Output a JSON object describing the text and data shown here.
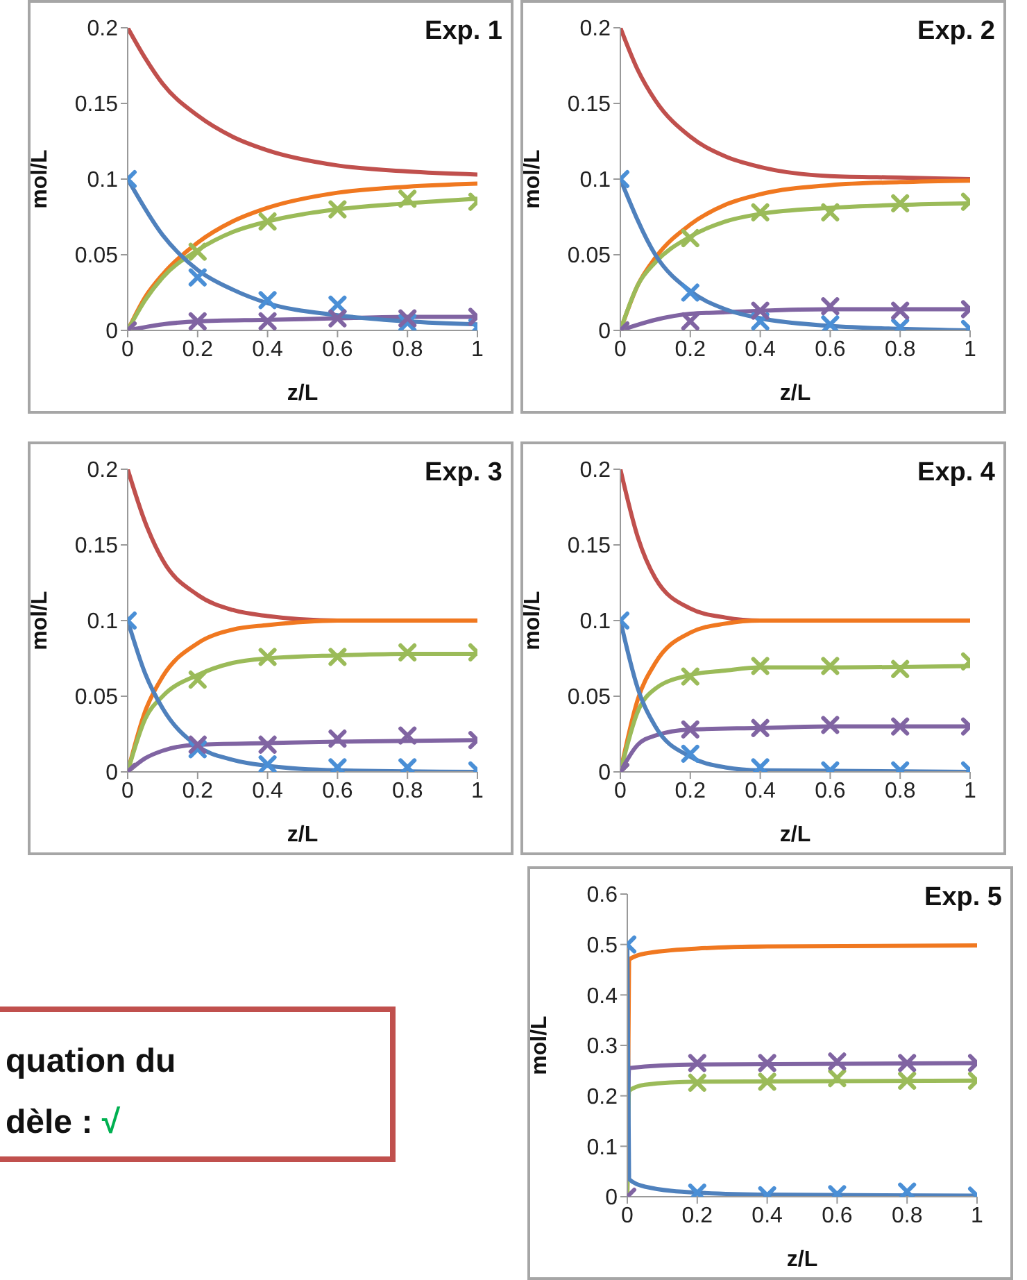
{
  "chart_data": [
    {
      "type": "line",
      "title": "Exp. 1",
      "xlabel": "z/L",
      "ylabel": "mol/L",
      "xlim": [
        0,
        1
      ],
      "xticks": [
        0,
        0.2,
        0.4,
        0.6,
        0.8,
        1
      ],
      "ylim": [
        0,
        0.2
      ],
      "yticks": [
        0,
        0.05,
        0.1,
        0.15,
        0.2
      ],
      "series": [
        {
          "type": "line",
          "color": "#c0504d",
          "x": [
            0,
            0.05,
            0.1,
            0.2,
            0.3,
            0.4,
            0.6,
            0.8,
            1
          ],
          "values": [
            0.2,
            0.18,
            0.163,
            0.142,
            0.128,
            0.119,
            0.109,
            0.105,
            0.103
          ]
        },
        {
          "type": "line",
          "color": "#f07820",
          "x": [
            0,
            0.05,
            0.1,
            0.2,
            0.3,
            0.4,
            0.6,
            0.8,
            1
          ],
          "values": [
            0,
            0.022,
            0.037,
            0.058,
            0.072,
            0.081,
            0.091,
            0.095,
            0.097
          ]
        },
        {
          "type": "line",
          "color": "#9bbb59",
          "x": [
            0,
            0.05,
            0.1,
            0.2,
            0.3,
            0.4,
            0.6,
            0.8,
            1
          ],
          "values": [
            0,
            0.02,
            0.035,
            0.053,
            0.065,
            0.072,
            0.08,
            0.084,
            0.087
          ]
        },
        {
          "type": "line",
          "color": "#8064a2",
          "x": [
            0,
            0.1,
            0.2,
            0.4,
            0.6,
            0.8,
            1
          ],
          "values": [
            0,
            0.004,
            0.006,
            0.007,
            0.008,
            0.009,
            0.009
          ]
        },
        {
          "type": "line",
          "color": "#4f81bd",
          "x": [
            0,
            0.1,
            0.2,
            0.3,
            0.4,
            0.6,
            0.8,
            1
          ],
          "values": [
            0.1,
            0.063,
            0.04,
            0.027,
            0.018,
            0.01,
            0.006,
            0.004
          ]
        },
        {
          "type": "scatter",
          "marker": "cross",
          "color": "#4a8fd6",
          "x": [
            0,
            0.2,
            0.4,
            0.6,
            0.8,
            1
          ],
          "values": [
            0.1,
            0.035,
            0.02,
            0.017,
            0.005,
            0.002
          ]
        },
        {
          "type": "scatter",
          "marker": "cross",
          "color": "#9bbb59",
          "x": [
            0,
            0.2,
            0.4,
            0.6,
            0.8,
            1
          ],
          "values": [
            0,
            0.052,
            0.072,
            0.08,
            0.087,
            0.085
          ]
        },
        {
          "type": "scatter",
          "marker": "cross",
          "color": "#8064a2",
          "x": [
            0,
            0.2,
            0.4,
            0.6,
            0.8,
            1
          ],
          "values": [
            0,
            0.006,
            0.006,
            0.008,
            0.008,
            0.009
          ]
        }
      ]
    },
    {
      "type": "line",
      "title": "Exp. 2",
      "xlabel": "z/L",
      "ylabel": "mol/L",
      "xlim": [
        0,
        1
      ],
      "xticks": [
        0,
        0.2,
        0.4,
        0.6,
        0.8,
        1
      ],
      "ylim": [
        0,
        0.2
      ],
      "yticks": [
        0,
        0.05,
        0.1,
        0.15,
        0.2
      ],
      "series": [
        {
          "type": "line",
          "color": "#c0504d",
          "x": [
            0,
            0.05,
            0.1,
            0.2,
            0.3,
            0.4,
            0.6,
            0.8,
            1
          ],
          "values": [
            0.2,
            0.172,
            0.152,
            0.128,
            0.115,
            0.108,
            0.102,
            0.101,
            0.1
          ]
        },
        {
          "type": "line",
          "color": "#f07820",
          "x": [
            0,
            0.05,
            0.1,
            0.2,
            0.3,
            0.4,
            0.6,
            0.8,
            1
          ],
          "values": [
            0,
            0.03,
            0.048,
            0.07,
            0.083,
            0.09,
            0.096,
            0.098,
            0.099
          ]
        },
        {
          "type": "line",
          "color": "#9bbb59",
          "x": [
            0,
            0.05,
            0.1,
            0.2,
            0.3,
            0.4,
            0.6,
            0.8,
            1
          ],
          "values": [
            0,
            0.03,
            0.045,
            0.062,
            0.072,
            0.077,
            0.081,
            0.083,
            0.084
          ]
        },
        {
          "type": "line",
          "color": "#8064a2",
          "x": [
            0,
            0.1,
            0.2,
            0.3,
            0.4,
            0.6,
            1
          ],
          "values": [
            0,
            0.007,
            0.011,
            0.012,
            0.013,
            0.014,
            0.014
          ]
        },
        {
          "type": "line",
          "color": "#4f81bd",
          "x": [
            0,
            0.1,
            0.2,
            0.3,
            0.4,
            0.6,
            0.8,
            1
          ],
          "values": [
            0.1,
            0.05,
            0.026,
            0.014,
            0.008,
            0.003,
            0.001,
            0
          ]
        },
        {
          "type": "scatter",
          "marker": "cross",
          "color": "#4a8fd6",
          "x": [
            0,
            0.2,
            0.4,
            0.6,
            0.8,
            1
          ],
          "values": [
            0.1,
            0.025,
            0.006,
            0.004,
            0.002,
            0.001
          ]
        },
        {
          "type": "scatter",
          "marker": "cross",
          "color": "#9bbb59",
          "x": [
            0,
            0.2,
            0.4,
            0.6,
            0.8,
            1
          ],
          "values": [
            0,
            0.061,
            0.078,
            0.078,
            0.084,
            0.085
          ]
        },
        {
          "type": "scatter",
          "marker": "cross",
          "color": "#8064a2",
          "x": [
            0,
            0.2,
            0.4,
            0.6,
            0.8,
            1
          ],
          "values": [
            0,
            0.006,
            0.013,
            0.016,
            0.013,
            0.014
          ]
        }
      ]
    },
    {
      "type": "line",
      "title": "Exp. 3",
      "xlabel": "z/L",
      "ylabel": "mol/L",
      "xlim": [
        0,
        1
      ],
      "xticks": [
        0,
        0.2,
        0.4,
        0.6,
        0.8,
        1
      ],
      "ylim": [
        0,
        0.2
      ],
      "yticks": [
        0,
        0.05,
        0.1,
        0.15,
        0.2
      ],
      "series": [
        {
          "type": "line",
          "color": "#c0504d",
          "x": [
            0,
            0.05,
            0.1,
            0.2,
            0.3,
            0.4,
            0.6,
            1
          ],
          "values": [
            0.2,
            0.165,
            0.14,
            0.117,
            0.107,
            0.103,
            0.1,
            0.1
          ]
        },
        {
          "type": "line",
          "color": "#f07820",
          "x": [
            0,
            0.05,
            0.1,
            0.2,
            0.3,
            0.4,
            0.6,
            1
          ],
          "values": [
            0,
            0.04,
            0.063,
            0.085,
            0.094,
            0.097,
            0.1,
            0.1
          ]
        },
        {
          "type": "line",
          "color": "#9bbb59",
          "x": [
            0,
            0.05,
            0.1,
            0.2,
            0.3,
            0.4,
            0.6,
            0.8,
            1
          ],
          "values": [
            0,
            0.035,
            0.05,
            0.064,
            0.072,
            0.075,
            0.077,
            0.078,
            0.078
          ]
        },
        {
          "type": "line",
          "color": "#8064a2",
          "x": [
            0,
            0.05,
            0.1,
            0.2,
            0.4,
            0.6,
            1
          ],
          "values": [
            0,
            0.009,
            0.014,
            0.018,
            0.019,
            0.02,
            0.021
          ]
        },
        {
          "type": "line",
          "color": "#4f81bd",
          "x": [
            0,
            0.05,
            0.1,
            0.2,
            0.3,
            0.4,
            0.6,
            1
          ],
          "values": [
            0.1,
            0.065,
            0.042,
            0.017,
            0.008,
            0.004,
            0.001,
            0
          ]
        },
        {
          "type": "scatter",
          "marker": "cross",
          "color": "#4a8fd6",
          "x": [
            0,
            0.2,
            0.4,
            0.6,
            0.8,
            1
          ],
          "values": [
            0.1,
            0.015,
            0.005,
            0.003,
            0.003,
            0.001
          ]
        },
        {
          "type": "scatter",
          "marker": "cross",
          "color": "#9bbb59",
          "x": [
            0,
            0.2,
            0.4,
            0.6,
            0.8,
            1
          ],
          "values": [
            0,
            0.061,
            0.076,
            0.076,
            0.079,
            0.079
          ]
        },
        {
          "type": "scatter",
          "marker": "cross",
          "color": "#8064a2",
          "x": [
            0,
            0.2,
            0.4,
            0.6,
            0.8,
            1
          ],
          "values": [
            0,
            0.018,
            0.018,
            0.022,
            0.024,
            0.021
          ]
        }
      ]
    },
    {
      "type": "line",
      "title": "Exp. 4",
      "xlabel": "z/L",
      "ylabel": "mol/L",
      "xlim": [
        0,
        1
      ],
      "xticks": [
        0,
        0.2,
        0.4,
        0.6,
        0.8,
        1
      ],
      "ylim": [
        0,
        0.2
      ],
      "yticks": [
        0,
        0.05,
        0.1,
        0.15,
        0.2
      ],
      "series": [
        {
          "type": "line",
          "color": "#c0504d",
          "x": [
            0,
            0.05,
            0.1,
            0.2,
            0.3,
            0.4,
            1
          ],
          "values": [
            0.2,
            0.155,
            0.128,
            0.108,
            0.102,
            0.1,
            0.1
          ]
        },
        {
          "type": "line",
          "color": "#f07820",
          "x": [
            0,
            0.05,
            0.1,
            0.2,
            0.3,
            0.4,
            1
          ],
          "values": [
            0,
            0.048,
            0.072,
            0.092,
            0.098,
            0.1,
            0.1
          ]
        },
        {
          "type": "line",
          "color": "#9bbb59",
          "x": [
            0,
            0.05,
            0.1,
            0.2,
            0.3,
            0.4,
            0.6,
            1
          ],
          "values": [
            0,
            0.04,
            0.055,
            0.064,
            0.067,
            0.069,
            0.069,
            0.07
          ]
        },
        {
          "type": "line",
          "color": "#8064a2",
          "x": [
            0,
            0.05,
            0.1,
            0.2,
            0.4,
            0.6,
            1
          ],
          "values": [
            0,
            0.018,
            0.024,
            0.028,
            0.029,
            0.03,
            0.03
          ]
        },
        {
          "type": "line",
          "color": "#4f81bd",
          "x": [
            0,
            0.05,
            0.1,
            0.2,
            0.3,
            0.4,
            1
          ],
          "values": [
            0.1,
            0.055,
            0.03,
            0.01,
            0.003,
            0.001,
            0
          ]
        },
        {
          "type": "scatter",
          "marker": "cross",
          "color": "#4a8fd6",
          "x": [
            0,
            0.2,
            0.4,
            0.6,
            0.8,
            1
          ],
          "values": [
            0.1,
            0.012,
            0.003,
            0.001,
            0.001,
            0.001
          ]
        },
        {
          "type": "scatter",
          "marker": "cross",
          "color": "#9bbb59",
          "x": [
            0,
            0.2,
            0.4,
            0.6,
            0.8,
            1
          ],
          "values": [
            0,
            0.063,
            0.07,
            0.07,
            0.068,
            0.073
          ]
        },
        {
          "type": "scatter",
          "marker": "cross",
          "color": "#8064a2",
          "x": [
            0,
            0.2,
            0.4,
            0.6,
            0.8,
            1
          ],
          "values": [
            0,
            0.028,
            0.029,
            0.031,
            0.03,
            0.03
          ]
        }
      ]
    },
    {
      "type": "line",
      "title": "Exp. 5",
      "xlabel": "z/L",
      "ylabel": "mol/L",
      "xlim": [
        0,
        1
      ],
      "xticks": [
        0,
        0.2,
        0.4,
        0.6,
        0.8,
        1
      ],
      "ylim": [
        0,
        0.6
      ],
      "yticks": [
        0,
        0.1,
        0.2,
        0.3,
        0.4,
        0.5,
        0.6
      ],
      "series": [
        {
          "type": "line",
          "color": "#f07820",
          "x": [
            0,
            0.005,
            0.05,
            0.2,
            0.4,
            1
          ],
          "values": [
            0,
            0.47,
            0.482,
            0.492,
            0.496,
            0.498
          ]
        },
        {
          "type": "line",
          "color": "#8064a2",
          "x": [
            0,
            0.005,
            0.2,
            1
          ],
          "values": [
            0,
            0.255,
            0.262,
            0.265
          ]
        },
        {
          "type": "line",
          "color": "#9bbb59",
          "x": [
            0,
            0.005,
            0.05,
            0.2,
            1
          ],
          "values": [
            0,
            0.21,
            0.222,
            0.228,
            0.23
          ]
        },
        {
          "type": "line",
          "color": "#4f81bd",
          "x": [
            0,
            0.005,
            0.05,
            0.2,
            0.4,
            1
          ],
          "values": [
            0.5,
            0.035,
            0.02,
            0.008,
            0.004,
            0.002
          ]
        },
        {
          "type": "scatter",
          "marker": "cross",
          "color": "#4a8fd6",
          "x": [
            0,
            0.2,
            0.4,
            0.6,
            0.8,
            1
          ],
          "values": [
            0.5,
            0.008,
            0.003,
            0.005,
            0.01,
            0.002
          ]
        },
        {
          "type": "scatter",
          "marker": "cross",
          "color": "#9bbb59",
          "x": [
            0.2,
            0.4,
            0.6,
            0.8,
            1
          ],
          "values": [
            0.226,
            0.228,
            0.235,
            0.23,
            0.23
          ]
        },
        {
          "type": "scatter",
          "marker": "cross",
          "color": "#8064a2",
          "x": [
            0,
            0.2,
            0.4,
            0.6,
            0.8,
            1
          ],
          "values": [
            0,
            0.265,
            0.265,
            0.268,
            0.265,
            0.265
          ]
        }
      ]
    },
    {
      "type": "other",
      "annotations": [
        "quation du",
        "dèle :",
        "√"
      ]
    }
  ]
}
